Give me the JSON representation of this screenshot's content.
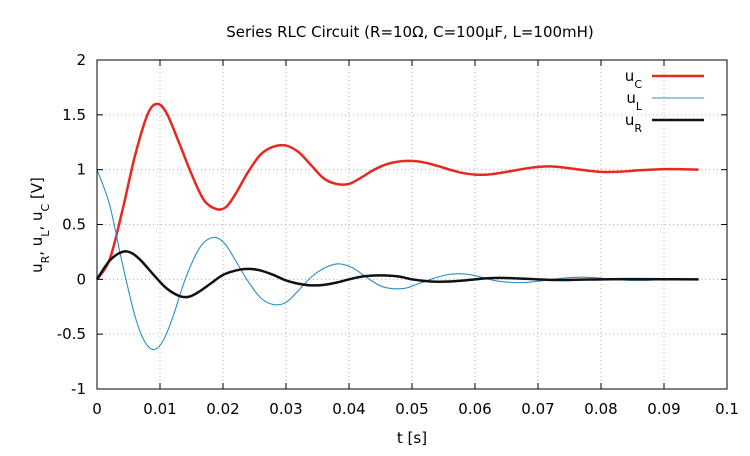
{
  "chart_data": {
    "type": "line",
    "title": "Series RLC Circuit (R=10Ω, C=100μF, L=100mH)",
    "xlabel": "t [s]",
    "ylabel_parts": [
      {
        "main": "u",
        "sub": "R"
      },
      {
        "main": ", u",
        "sub": "L"
      },
      {
        "main": ", u",
        "sub": "C"
      },
      {
        "main": " [V]",
        "sub": ""
      }
    ],
    "xlim": [
      0,
      0.1
    ],
    "ylim": [
      -1,
      2
    ],
    "x_ticks": [
      0,
      0.01,
      0.02,
      0.03,
      0.04,
      0.05,
      0.06,
      0.07,
      0.08,
      0.09,
      0.1
    ],
    "x_tick_labels": [
      "0",
      "0.01",
      "0.02",
      "0.03",
      "0.04",
      "0.05",
      "0.06",
      "0.07",
      "0.08",
      "0.09",
      "0.1"
    ],
    "y_ticks": [
      -1,
      -0.5,
      0,
      0.5,
      1,
      1.5,
      2
    ],
    "y_tick_labels": [
      "-1",
      "-0.5",
      "0",
      "0.5",
      "1",
      "1.5",
      "2"
    ],
    "grid": true,
    "legend_position": "top-right",
    "series": [
      {
        "name_main": "u",
        "name_sub": "C",
        "color": "#e8281e",
        "width": 2.5,
        "x": [
          0,
          0.002,
          0.004,
          0.006,
          0.008,
          0.0095,
          0.011,
          0.013,
          0.015,
          0.017,
          0.019,
          0.0205,
          0.022,
          0.024,
          0.026,
          0.028,
          0.03,
          0.032,
          0.034,
          0.036,
          0.038,
          0.04,
          0.042,
          0.044,
          0.046,
          0.048,
          0.05,
          0.052,
          0.054,
          0.056,
          0.058,
          0.06,
          0.062,
          0.064,
          0.066,
          0.068,
          0.07,
          0.072,
          0.074,
          0.076,
          0.078,
          0.08,
          0.082,
          0.084,
          0.086,
          0.088,
          0.09,
          0.092,
          0.0955
        ],
        "y": [
          0,
          0.18,
          0.62,
          1.12,
          1.5,
          1.6,
          1.52,
          1.25,
          0.96,
          0.72,
          0.64,
          0.66,
          0.78,
          0.98,
          1.14,
          1.21,
          1.22,
          1.16,
          1.04,
          0.92,
          0.87,
          0.87,
          0.93,
          1.0,
          1.05,
          1.075,
          1.08,
          1.065,
          1.035,
          1.0,
          0.97,
          0.955,
          0.955,
          0.97,
          0.99,
          1.01,
          1.025,
          1.03,
          1.02,
          1.005,
          0.99,
          0.98,
          0.98,
          0.985,
          0.995,
          1.0,
          1.005,
          1.005,
          1.0
        ]
      },
      {
        "name_main": "u",
        "name_sub": "L",
        "color": "#2a8fc6",
        "width": 1.1,
        "x": [
          0,
          0.002,
          0.004,
          0.006,
          0.0075,
          0.009,
          0.0105,
          0.012,
          0.014,
          0.016,
          0.0175,
          0.019,
          0.0205,
          0.022,
          0.024,
          0.026,
          0.028,
          0.03,
          0.032,
          0.034,
          0.036,
          0.038,
          0.0395,
          0.041,
          0.043,
          0.045,
          0.047,
          0.049,
          0.051,
          0.053,
          0.055,
          0.057,
          0.059,
          0.061,
          0.063,
          0.065,
          0.067,
          0.069,
          0.071,
          0.073,
          0.075,
          0.077,
          0.079,
          0.081,
          0.083,
          0.085,
          0.087,
          0.089,
          0.091,
          0.093,
          0.0955
        ],
        "y": [
          1.0,
          0.68,
          0.15,
          -0.33,
          -0.56,
          -0.64,
          -0.56,
          -0.35,
          0.0,
          0.26,
          0.36,
          0.38,
          0.31,
          0.17,
          -0.02,
          -0.17,
          -0.23,
          -0.21,
          -0.1,
          0.02,
          0.1,
          0.14,
          0.13,
          0.09,
          0.01,
          -0.06,
          -0.085,
          -0.08,
          -0.04,
          0.0,
          0.035,
          0.05,
          0.045,
          0.02,
          -0.01,
          -0.025,
          -0.03,
          -0.025,
          -0.01,
          0.005,
          0.015,
          0.02,
          0.015,
          0.005,
          -0.005,
          -0.01,
          -0.01,
          -0.005,
          0,
          0.003,
          0
        ]
      },
      {
        "name_main": "u",
        "name_sub": "R",
        "color": "#111111",
        "width": 2.5,
        "x": [
          0,
          0.002,
          0.004,
          0.0055,
          0.007,
          0.009,
          0.011,
          0.013,
          0.0145,
          0.016,
          0.018,
          0.02,
          0.022,
          0.024,
          0.026,
          0.028,
          0.03,
          0.032,
          0.034,
          0.036,
          0.038,
          0.04,
          0.042,
          0.044,
          0.046,
          0.048,
          0.05,
          0.052,
          0.054,
          0.056,
          0.058,
          0.06,
          0.062,
          0.064,
          0.066,
          0.068,
          0.07,
          0.072,
          0.074,
          0.076,
          0.078,
          0.08,
          0.085,
          0.09,
          0.0955
        ],
        "y": [
          0,
          0.17,
          0.25,
          0.24,
          0.17,
          0.04,
          -0.08,
          -0.15,
          -0.16,
          -0.12,
          -0.04,
          0.04,
          0.08,
          0.095,
          0.08,
          0.04,
          -0.01,
          -0.04,
          -0.055,
          -0.05,
          -0.03,
          0.0,
          0.025,
          0.035,
          0.035,
          0.025,
          0.0,
          -0.015,
          -0.022,
          -0.02,
          -0.012,
          0.0,
          0.01,
          0.013,
          0.01,
          0.005,
          0,
          -0.005,
          -0.006,
          -0.004,
          -0.002,
          0,
          0.002,
          0.001,
          0
        ]
      }
    ]
  }
}
